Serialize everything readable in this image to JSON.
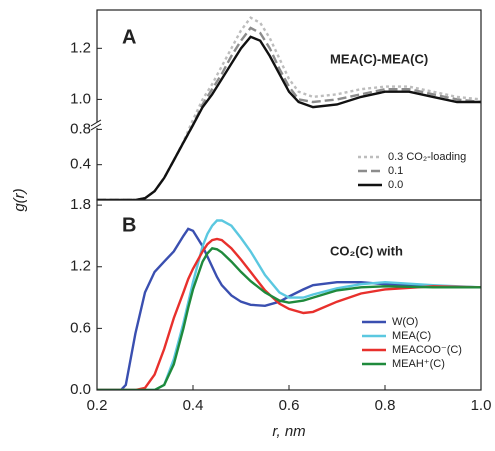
{
  "chart_data": [
    {
      "type": "line",
      "panel_label": "A",
      "annotation": "MEA(C)-MEA(C)",
      "ylabel": "g(r)",
      "ylim": [
        0,
        1.35
      ],
      "ybreak": [
        0.85,
        0.9
      ],
      "xlim": [
        0.2,
        1.0
      ],
      "yticks": [
        0.4,
        0.8,
        {
          "value": 1,
          "label": "1.0"
        },
        1.2
      ],
      "x": [
        0.2,
        0.28,
        0.3,
        0.32,
        0.34,
        0.36,
        0.38,
        0.4,
        0.42,
        0.44,
        0.46,
        0.48,
        0.5,
        0.52,
        0.54,
        0.56,
        0.58,
        0.6,
        0.62,
        0.65,
        0.7,
        0.75,
        0.8,
        0.85,
        0.9,
        0.95,
        1.0
      ],
      "series": [
        {
          "name": "0.3 CO₂-loading",
          "color": "#bdbdbd",
          "linestyle": "dotted",
          "values": [
            0,
            0,
            0.02,
            0.1,
            0.25,
            0.45,
            0.66,
            0.92,
            1.0,
            1.06,
            1.13,
            1.2,
            1.27,
            1.32,
            1.3,
            1.24,
            1.16,
            1.08,
            1.03,
            1.01,
            1.02,
            1.04,
            1.05,
            1.05,
            1.03,
            1.01,
            1.0
          ]
        },
        {
          "name": "0.1",
          "color": "#8c8c8c",
          "linestyle": "dashed",
          "values": [
            0,
            0,
            0.02,
            0.1,
            0.25,
            0.45,
            0.65,
            0.9,
            0.98,
            1.04,
            1.1,
            1.17,
            1.23,
            1.28,
            1.26,
            1.2,
            1.12,
            1.05,
            1.0,
            0.99,
            1.0,
            1.02,
            1.04,
            1.04,
            1.02,
            1.0,
            0.99
          ]
        },
        {
          "name": "0.0",
          "color": "#111111",
          "linestyle": "solid",
          "values": [
            0,
            0,
            0.02,
            0.1,
            0.25,
            0.45,
            0.65,
            0.9,
            0.97,
            1.02,
            1.08,
            1.14,
            1.2,
            1.245,
            1.23,
            1.17,
            1.1,
            1.03,
            0.99,
            0.97,
            0.98,
            1.01,
            1.03,
            1.03,
            1.01,
            0.99,
            0.99
          ]
        }
      ]
    },
    {
      "type": "line",
      "panel_label": "B",
      "annotation": "CO₂(C)  with",
      "xlabel": "r, nm",
      "ylim": [
        0,
        1.85
      ],
      "xlim": [
        0.2,
        1.0
      ],
      "yticks": [
        {
          "value": 0,
          "label": "0.0"
        },
        0.6,
        1.2,
        1.8
      ],
      "xticks": [
        0.2,
        0.4,
        0.6,
        0.8,
        {
          "value": 1,
          "label": "1.0"
        }
      ],
      "x": [
        0.2,
        0.25,
        0.26,
        0.28,
        0.3,
        0.32,
        0.34,
        0.36,
        0.38,
        0.39,
        0.4,
        0.42,
        0.43,
        0.44,
        0.45,
        0.46,
        0.48,
        0.5,
        0.52,
        0.55,
        0.58,
        0.6,
        0.63,
        0.65,
        0.7,
        0.75,
        0.8,
        0.9,
        1.0
      ],
      "series": [
        {
          "name": "W(O)",
          "color": "#3a4fb0",
          "linestyle": "solid",
          "values": [
            0,
            0,
            0.05,
            0.55,
            0.95,
            1.15,
            1.25,
            1.35,
            1.5,
            1.57,
            1.55,
            1.4,
            1.3,
            1.2,
            1.1,
            1.02,
            0.92,
            0.86,
            0.83,
            0.82,
            0.86,
            0.91,
            0.98,
            1.02,
            1.05,
            1.05,
            1.03,
            1.01,
            1.0
          ]
        },
        {
          "name": "MEA(C)",
          "color": "#5bc8e0",
          "linestyle": "solid",
          "values": [
            0,
            0,
            0,
            0,
            0,
            0,
            0.05,
            0.3,
            0.65,
            0.85,
            1.05,
            1.4,
            1.52,
            1.6,
            1.65,
            1.65,
            1.6,
            1.48,
            1.35,
            1.12,
            0.95,
            0.9,
            0.9,
            0.93,
            0.99,
            1.03,
            1.05,
            1.02,
            1.0
          ]
        },
        {
          "name": "MEACOO⁻(C)",
          "color": "#e8302c",
          "linestyle": "solid",
          "values": [
            0,
            0,
            0,
            0,
            0.02,
            0.15,
            0.4,
            0.7,
            0.95,
            1.08,
            1.18,
            1.35,
            1.42,
            1.46,
            1.47,
            1.46,
            1.38,
            1.27,
            1.15,
            0.97,
            0.84,
            0.79,
            0.75,
            0.76,
            0.86,
            0.94,
            0.98,
            1.01,
            1.0
          ]
        },
        {
          "name": "MEAH⁺(C)",
          "color": "#1f8a3c",
          "linestyle": "solid",
          "values": [
            0,
            0,
            0,
            0,
            0,
            0,
            0.05,
            0.25,
            0.6,
            0.8,
            0.98,
            1.25,
            1.33,
            1.38,
            1.37,
            1.34,
            1.25,
            1.15,
            1.06,
            0.95,
            0.87,
            0.85,
            0.87,
            0.9,
            0.97,
            1.0,
            1.01,
            1.0,
            1.0
          ]
        }
      ]
    }
  ]
}
